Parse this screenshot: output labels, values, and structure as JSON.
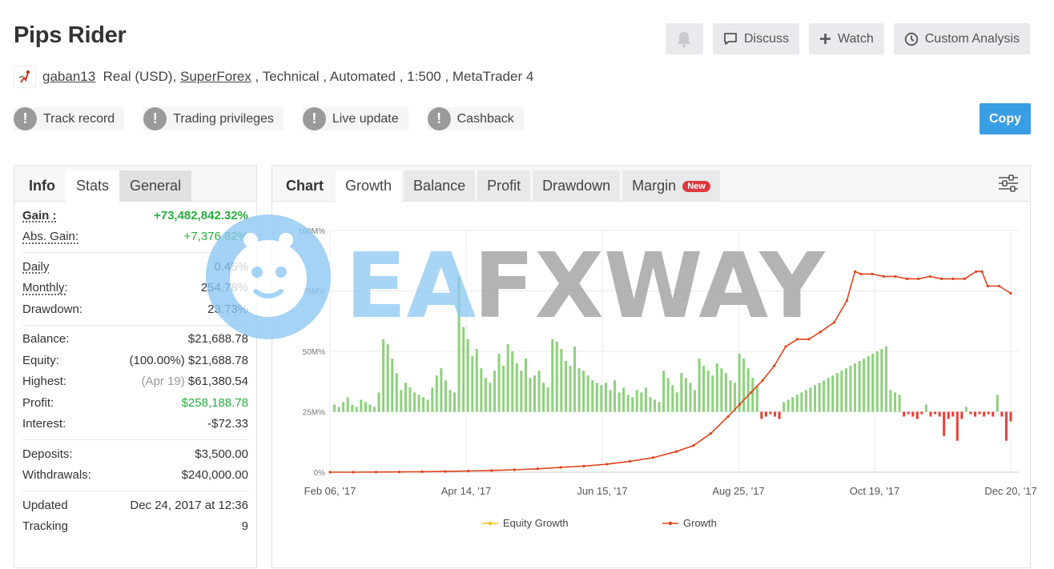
{
  "header": {
    "title": "Pips Rider",
    "bell_icon": "bell-icon",
    "discuss_label": "Discuss",
    "watch_label": "Watch",
    "custom_analysis_label": "Custom Analysis"
  },
  "meta": {
    "username": "gaban13",
    "account_type": "Real (USD), ",
    "broker": "SuperForex",
    "details": " , Technical , Automated , 1:500 , MetaTrader 4"
  },
  "badges": [
    "Track record",
    "Trading privileges",
    "Live update",
    "Cashback"
  ],
  "copy_label": "Copy",
  "left_tabs": {
    "info": "Info",
    "stats": "Stats",
    "general": "General"
  },
  "stats": {
    "gain_label": "Gain :",
    "gain": "+73,482,842.32%",
    "abs_gain_label": "Abs. Gain:",
    "abs_gain": "+7,376.82%",
    "daily_label": "Daily",
    "daily": "0.45%",
    "monthly_label": "Monthly:",
    "monthly": "254.78%",
    "drawdown_label": "Drawdown:",
    "drawdown": "23.73%",
    "balance_label": "Balance:",
    "balance": "$21,688.78",
    "equity_label": "Equity:",
    "equity_pct": "(100.00%)",
    "equity": "$21,688.78",
    "highest_label": "Highest:",
    "highest_date": "(Apr 19)",
    "highest": "$61,380.54",
    "profit_label": "Profit:",
    "profit": "$258,188.78",
    "interest_label": "Interest:",
    "interest": "-$72.33",
    "deposits_label": "Deposits:",
    "deposits": "$3,500.00",
    "withdrawals_label": "Withdrawals:",
    "withdrawals": "$240,000.00",
    "updated_label": "Updated",
    "updated": "Dec 24, 2017 at 12:36",
    "tracking_label": "Tracking",
    "tracking": "9"
  },
  "chart_tabs": {
    "chart": "Chart",
    "growth": "Growth",
    "balance": "Balance",
    "profit": "Profit",
    "drawdown": "Drawdown",
    "margin": "Margin",
    "new": "New"
  },
  "watermark": "EAFXWAY",
  "colors": {
    "growth_line": "#e0431f",
    "equity_line": "#f2c21b",
    "bars_pos": "#8fd17e",
    "bars_neg": "#e8413a",
    "accent": "#3a9ee4"
  },
  "chart_data": {
    "type": "line",
    "y_ticks": [
      "0%",
      "25M%",
      "50M%",
      "75M%",
      "100M%"
    ],
    "ylim": [
      0,
      100
    ],
    "x_ticks": [
      "Feb 06, '17",
      "Apr 14, '17",
      "Jun 15, '17",
      "Aug 25, '17",
      "Oct 19, '17",
      "Dec 20, '17"
    ],
    "legend": [
      "Equity Growth",
      "Growth"
    ],
    "growth_points_M": [
      [
        0,
        0
      ],
      [
        20,
        0
      ],
      [
        40,
        0.05
      ],
      [
        60,
        0.1
      ],
      [
        80,
        0.2
      ],
      [
        100,
        0.3
      ],
      [
        120,
        0.5
      ],
      [
        140,
        0.7
      ],
      [
        160,
        1
      ],
      [
        180,
        1.4
      ],
      [
        200,
        2
      ],
      [
        220,
        2.5
      ],
      [
        240,
        3.3
      ],
      [
        260,
        4.5
      ],
      [
        280,
        6
      ],
      [
        300,
        8.5
      ],
      [
        315,
        11
      ],
      [
        330,
        16
      ],
      [
        345,
        23
      ],
      [
        355,
        28
      ],
      [
        365,
        33
      ],
      [
        375,
        38
      ],
      [
        385,
        44
      ],
      [
        395,
        52
      ],
      [
        405,
        55
      ],
      [
        415,
        55
      ],
      [
        425,
        58
      ],
      [
        437,
        62
      ],
      [
        448,
        71
      ],
      [
        455,
        83
      ],
      [
        460,
        82
      ],
      [
        470,
        82
      ],
      [
        480,
        81
      ],
      [
        490,
        81
      ],
      [
        500,
        80
      ],
      [
        510,
        80
      ],
      [
        520,
        81
      ],
      [
        530,
        80
      ],
      [
        540,
        80
      ],
      [
        550,
        80
      ],
      [
        560,
        83
      ],
      [
        565,
        83
      ],
      [
        570,
        77
      ],
      [
        580,
        77
      ],
      [
        590,
        74
      ]
    ],
    "bars_M": [
      3,
      2,
      4,
      6,
      3,
      2,
      5,
      4,
      3,
      2,
      8,
      30,
      28,
      22,
      16,
      9,
      12,
      10,
      8,
      7,
      6,
      5,
      10,
      15,
      18,
      13,
      9,
      8,
      56,
      35,
      30,
      23,
      26,
      18,
      14,
      12,
      17,
      24,
      19,
      28,
      25,
      20,
      17,
      22,
      14,
      15,
      17,
      12,
      10,
      30,
      29,
      26,
      21,
      19,
      27,
      18,
      17,
      15,
      13,
      12,
      11,
      12,
      9,
      13,
      8,
      10,
      7,
      6,
      9,
      8,
      10,
      6,
      5,
      4,
      17,
      14,
      11,
      8,
      16,
      14,
      12,
      9,
      22,
      19,
      17,
      15,
      20,
      18,
      16,
      13,
      12,
      24,
      22,
      18,
      14,
      11,
      -3,
      -2,
      -1,
      -2,
      -3,
      4,
      5,
      6,
      7,
      8,
      9,
      10,
      11,
      12,
      13,
      14,
      15,
      16,
      17,
      18,
      19,
      20,
      21,
      22,
      23,
      24,
      25,
      26,
      27,
      9,
      8,
      7,
      -2,
      -1,
      -2,
      -3,
      -1,
      3,
      -2,
      -1,
      -2,
      -10,
      -3,
      -2,
      -12,
      -3,
      2,
      -1,
      -2,
      -1,
      -2,
      -1,
      -2,
      7,
      -2,
      -12,
      -4
    ]
  }
}
